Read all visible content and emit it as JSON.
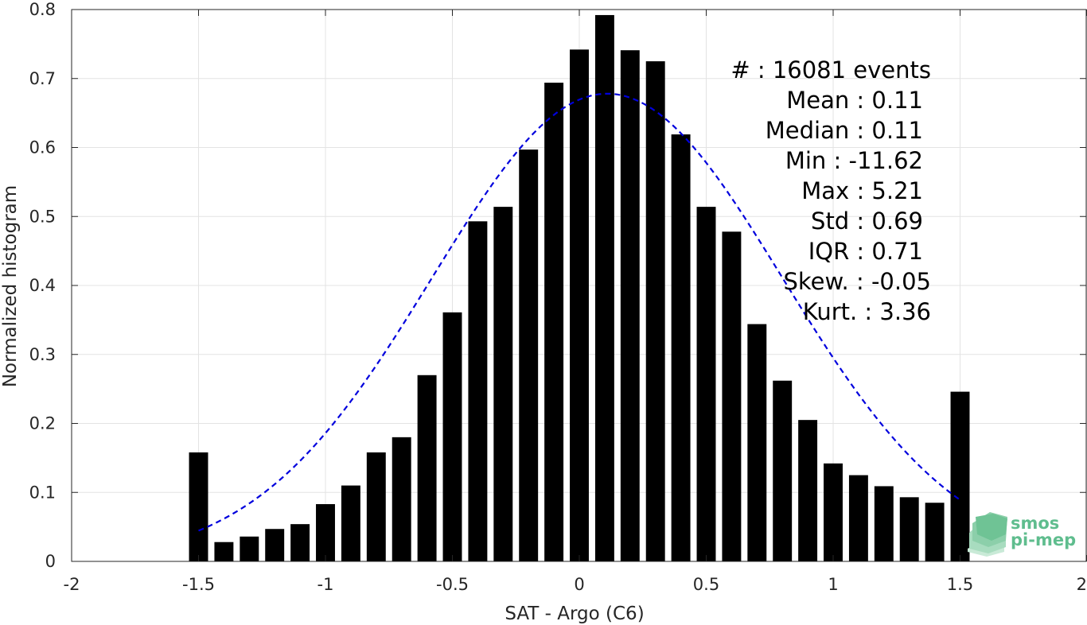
{
  "chart_data": {
    "type": "bar",
    "xlabel": "SAT - Argo (C6)",
    "ylabel": "Normalized histogram",
    "xlim": [
      -2,
      2
    ],
    "ylim": [
      0,
      0.8
    ],
    "xticks": [
      "-2",
      "-1.5",
      "-1",
      "-0.5",
      "0",
      "0.5",
      "1",
      "1.5",
      "2"
    ],
    "xtick_values": [
      -2,
      -1.5,
      -1,
      -0.5,
      0,
      0.5,
      1,
      1.5,
      2
    ],
    "yticks": [
      "0",
      "0.1",
      "0.2",
      "0.3",
      "0.4",
      "0.5",
      "0.6",
      "0.7",
      "0.8"
    ],
    "ytick_values": [
      0,
      0.1,
      0.2,
      0.3,
      0.4,
      0.5,
      0.6,
      0.7,
      0.8
    ],
    "grid": true,
    "bar_color": "#000000",
    "fit_color": "#0000dd",
    "bin_width": 0.1,
    "x": [
      -1.5,
      -1.4,
      -1.3,
      -1.2,
      -1.1,
      -1.0,
      -0.9,
      -0.8,
      -0.7,
      -0.6,
      -0.5,
      -0.4,
      -0.3,
      -0.2,
      -0.1,
      0.0,
      0.1,
      0.2,
      0.3,
      0.4,
      0.5,
      0.6,
      0.7,
      0.8,
      0.9,
      1.0,
      1.1,
      1.2,
      1.3,
      1.4,
      1.5
    ],
    "values": [
      0.158,
      0.028,
      0.036,
      0.047,
      0.054,
      0.083,
      0.11,
      0.158,
      0.18,
      0.27,
      0.361,
      0.493,
      0.514,
      0.597,
      0.694,
      0.742,
      0.792,
      0.741,
      0.725,
      0.619,
      0.514,
      0.478,
      0.344,
      0.262,
      0.205,
      0.142,
      0.125,
      0.109,
      0.093,
      0.085,
      0.246
    ],
    "fit": {
      "type": "gaussian",
      "mean": 0.11,
      "std": 0.69,
      "peak": 0.678,
      "x_range": [
        -1.5,
        1.5
      ],
      "style": "dashed"
    },
    "annotations": [
      {
        "key": "#",
        "sep": " : ",
        "value": "16081 events"
      },
      {
        "key": "Mean",
        "sep": " : ",
        "value": "0.11"
      },
      {
        "key": "Median",
        "sep": " : ",
        "value": "0.11"
      },
      {
        "key": "Min",
        "sep": " : ",
        "value": "-11.62"
      },
      {
        "key": "Max",
        "sep": " : ",
        "value": "5.21"
      },
      {
        "key": "Std",
        "sep": " : ",
        "value": "0.69"
      },
      {
        "key": "IQR",
        "sep": " : ",
        "value": "0.71"
      },
      {
        "key": "Skew.",
        "sep": " : ",
        "value": "-0.05"
      },
      {
        "key": "Kurt.",
        "sep": " : ",
        "value": "3.36"
      }
    ]
  },
  "logo": {
    "line1": "smos",
    "line2": "pi-mep",
    "color": "#5fbd8e"
  }
}
